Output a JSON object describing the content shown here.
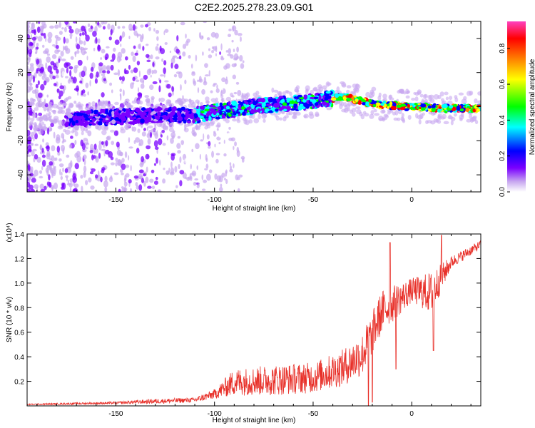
{
  "title": "C2E2.2025.278.23.09.G01",
  "chart_data": [
    {
      "type": "heatmap",
      "xlabel": "Height of straight line (km)",
      "ylabel": "Frequency (Hz)",
      "xlim": [
        -195,
        35
      ],
      "ylim": [
        -50,
        50
      ],
      "xticks": [
        -150,
        -100,
        -50,
        0
      ],
      "yticks": [
        -40,
        -20,
        0,
        20,
        40
      ],
      "colorbar": {
        "label": "Normalized spectral amplitude",
        "ticks": [
          0.0,
          0.2,
          0.4,
          0.6,
          0.8
        ],
        "range": [
          0,
          0.95
        ],
        "colormap": [
          "#ffffff",
          "#c8a8f0",
          "#7a00ff",
          "#0000ff",
          "#00ffff",
          "#00ff00",
          "#ffff00",
          "#ff8000",
          "#ff0000",
          "#ff40c0"
        ]
      },
      "ridge": [
        {
          "x": -195,
          "y": -6
        },
        {
          "x": -170,
          "y": -7
        },
        {
          "x": -150,
          "y": -6
        },
        {
          "x": -130,
          "y": -5
        },
        {
          "x": -110,
          "y": -5
        },
        {
          "x": -100,
          "y": -3
        },
        {
          "x": -80,
          "y": 0
        },
        {
          "x": -60,
          "y": 2
        },
        {
          "x": -45,
          "y": 4
        },
        {
          "x": -35,
          "y": 6
        },
        {
          "x": -25,
          "y": 3
        },
        {
          "x": -15,
          "y": 1
        },
        {
          "x": 0,
          "y": 0
        },
        {
          "x": 15,
          "y": -1
        },
        {
          "x": 35,
          "y": -1
        }
      ]
    },
    {
      "type": "line",
      "xlabel": "Height of straight line (km)",
      "ylabel": "SNR (10 * v/v)",
      "yscale_label": "(x10⁴)",
      "xlim": [
        -195,
        35
      ],
      "ylim": [
        0,
        1.4
      ],
      "xticks": [
        -150,
        -100,
        -50,
        0
      ],
      "yticks": [
        0.2,
        0.4,
        0.6,
        0.8,
        1.0,
        1.2,
        1.4
      ],
      "color": "#e8312a",
      "series": [
        {
          "envelope": [
            {
              "x": -195,
              "base": 0.01,
              "spread": 0.01
            },
            {
              "x": -150,
              "base": 0.02,
              "spread": 0.02
            },
            {
              "x": -130,
              "base": 0.03,
              "spread": 0.04
            },
            {
              "x": -110,
              "base": 0.04,
              "spread": 0.04
            },
            {
              "x": -100,
              "base": 0.08,
              "spread": 0.08
            },
            {
              "x": -90,
              "base": 0.15,
              "spread": 0.22
            },
            {
              "x": -70,
              "base": 0.16,
              "spread": 0.25
            },
            {
              "x": -50,
              "base": 0.18,
              "spread": 0.25
            },
            {
              "x": -35,
              "base": 0.25,
              "spread": 0.3
            },
            {
              "x": -25,
              "base": 0.35,
              "spread": 0.35
            },
            {
              "x": -15,
              "base": 0.7,
              "spread": 0.35
            },
            {
              "x": 0,
              "base": 0.9,
              "spread": 0.2
            },
            {
              "x": 10,
              "base": 0.85,
              "spread": 0.35
            },
            {
              "x": 20,
              "base": 1.15,
              "spread": 0.1
            },
            {
              "x": 35,
              "base": 1.3,
              "spread": 0.07
            }
          ],
          "spikes": [
            {
              "x": -22,
              "y": 0.0
            },
            {
              "x": -20,
              "y": 0.03
            },
            {
              "x": -11,
              "y": 1.33
            },
            {
              "x": -8,
              "y": 0.3
            },
            {
              "x": 11,
              "y": 0.45
            },
            {
              "x": 15,
              "y": 1.39
            }
          ]
        }
      ]
    }
  ]
}
